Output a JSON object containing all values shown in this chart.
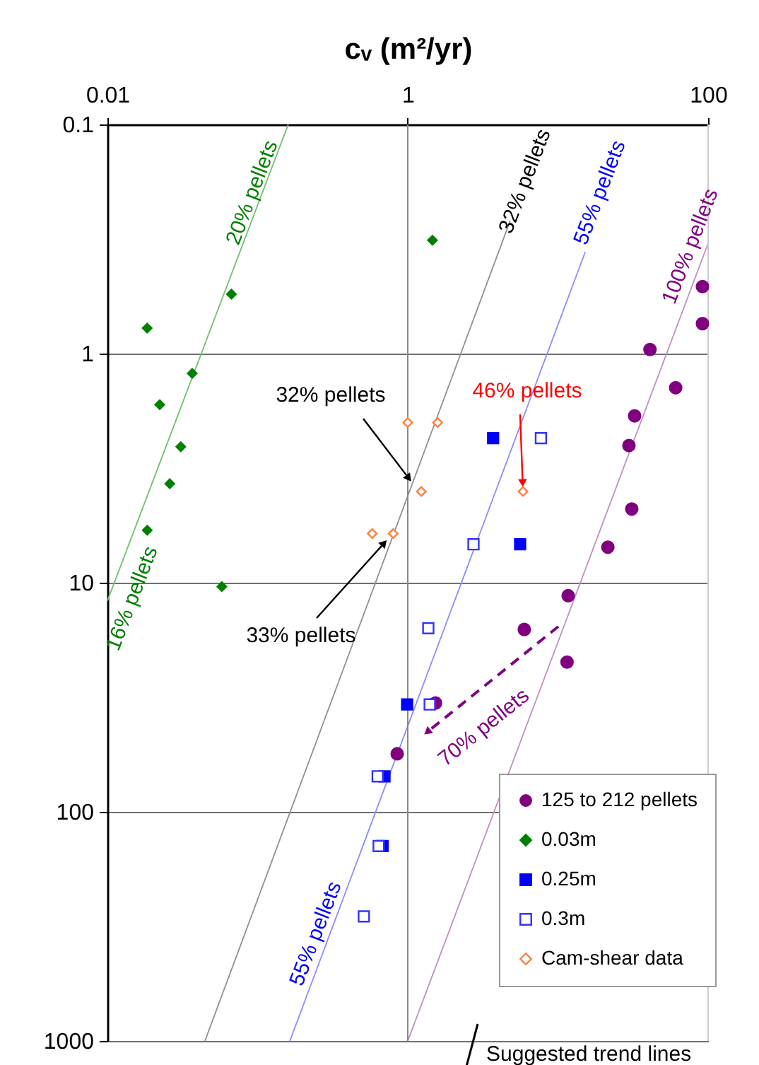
{
  "chart_data": {
    "type": "scatter",
    "xlabel": "cᵥ (m²/yr)",
    "log": "xy",
    "xlim": [
      0.01,
      100
    ],
    "xticks": [
      0.01,
      1,
      100
    ],
    "ylim": [
      1000,
      0.1
    ],
    "yticks": [
      0.1,
      1,
      10,
      100,
      1000
    ],
    "grid": "y",
    "legend": "bottom right",
    "ref_lines": [
      {
        "axis": "x",
        "value": 1,
        "color": "#888888"
      },
      {
        "axis": "x",
        "value": 100,
        "color": "#cccccc"
      }
    ],
    "series": [
      {
        "name": "125 to 212 pellets",
        "color": "#800080",
        "marker": "circle",
        "x": [
          91.7,
          91.7,
          41,
          60.8,
          32.4,
          29.7,
          31,
          21.5,
          11.7,
          5.97,
          11.5,
          1.53,
          0.85
        ],
        "values": [
          0.51,
          0.74,
          0.96,
          1.41,
          1.87,
          2.52,
          4.77,
          7.0,
          11.4,
          16.0,
          22.2,
          33.5,
          55.8
        ]
      },
      {
        "name": "0.03m",
        "color": "#008000",
        "marker": "diamond",
        "x": [
          0.0184,
          0.067,
          0.0367,
          0.0223,
          0.0308,
          0.026,
          0.0184,
          0.0578,
          1.46
        ],
        "values": [
          0.774,
          0.55,
          1.22,
          1.67,
          2.55,
          3.7,
          5.9,
          10.4,
          0.32
        ]
      },
      {
        "name": "0.25m",
        "color": "#0000ff",
        "marker": "square",
        "x": [
          3.7,
          5.6,
          0.99,
          0.7,
          0.68
        ],
        "values": [
          2.34,
          6.8,
          34,
          70,
          141
        ]
      },
      {
        "name": "0.3m",
        "color": "#3333ff",
        "marker": "square",
        "x": [
          7.7,
          2.74,
          1.37,
          1.4,
          0.63,
          0.64,
          0.51
        ],
        "values": [
          2.34,
          6.8,
          15.8,
          34,
          70,
          141,
          286
        ]
      },
      {
        "name": "Cam-shear data",
        "color": "#ff7f3f",
        "marker": "diamond",
        "x": [
          1.0,
          1.58,
          1.23,
          0.58,
          0.8,
          5.85
        ],
        "values": [
          2.0,
          2.0,
          4.0,
          6.1,
          6.1,
          4.0
        ]
      },
      {
        "type": "line",
        "color": "#70c070",
        "x": [
          0.01,
          0.16
        ],
        "values": [
          12,
          0.1
        ]
      },
      {
        "type": "line",
        "color": "#909090",
        "x": [
          0.0446,
          4.81
        ],
        "values": [
          1000,
          0.263
        ]
      },
      {
        "type": "line",
        "color": "#8c8cff",
        "x": [
          0.164,
          15.2
        ],
        "values": [
          1000,
          0.36
        ]
      },
      {
        "type": "line",
        "color": "#c090c0",
        "x": [
          1,
          100
        ],
        "values": [
          1000,
          0.33
        ]
      }
    ],
    "annotations": [
      "20% pellets",
      "32% pellets",
      "55% pellets",
      "100% pellets",
      "16% pellets",
      "55% pellets",
      "70% pellets",
      {
        "text": "32% pellets",
        "x": 1.1,
        "y": 3.75
      },
      {
        "text": "33% pellets",
        "x": 0.76,
        "y": 6.3
      },
      {
        "text": "46% pellets",
        "x": 5.85,
        "y": 4.0
      },
      "Suggested trend lines"
    ]
  }
}
